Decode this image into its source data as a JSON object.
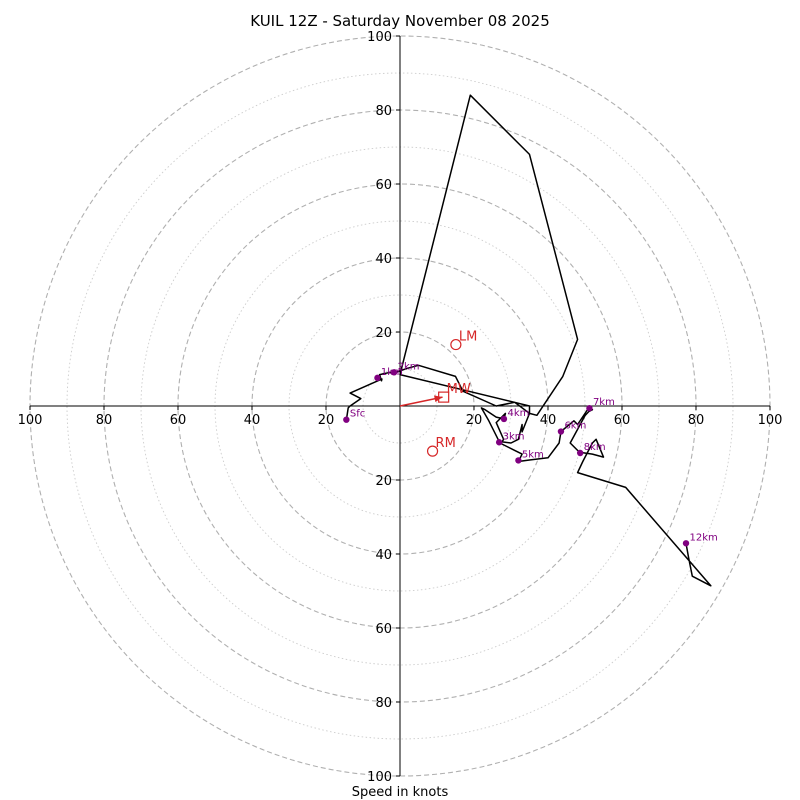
{
  "chart_data": {
    "type": "hodograph",
    "title": "KUIL 12Z - Saturday November 08 2025",
    "xlabel": "Speed in knots",
    "axis_range": [
      -100,
      100
    ],
    "ring_major": [
      10,
      20,
      30,
      40,
      50,
      60,
      70,
      80,
      90,
      100
    ],
    "x_tick_labels": [
      "100",
      "80",
      "60",
      "40",
      "20",
      "20",
      "40",
      "60",
      "80",
      "100"
    ],
    "x_tick_values": [
      -100,
      -80,
      -60,
      -40,
      -20,
      20,
      40,
      60,
      80,
      100
    ],
    "y_tick_labels": [
      "100",
      "80",
      "60",
      "40",
      "20",
      "20",
      "40",
      "60",
      "80",
      "100"
    ],
    "y_tick_values": [
      100,
      80,
      60,
      40,
      20,
      -20,
      -40,
      -60,
      -80,
      -100
    ],
    "colors": {
      "trace": "#000000",
      "height": "#800080",
      "motion": "#d62728",
      "grid": "#b0b0b0"
    },
    "trace": [
      [
        -14.5,
        -3.7
      ],
      [
        -14,
        -0.5
      ],
      [
        -13.5,
        0
      ],
      [
        -10.6,
        2
      ],
      [
        -13.5,
        3.5
      ],
      [
        -4.9,
        7.3
      ],
      [
        -5,
        6.8
      ],
      [
        -5.5,
        8.5
      ],
      [
        -3.1,
        9
      ],
      [
        -0.9,
        9.2
      ],
      [
        2,
        10.2
      ],
      [
        5,
        11
      ],
      [
        15,
        8
      ],
      [
        17,
        4
      ],
      [
        26,
        0
      ],
      [
        31,
        1
      ],
      [
        35,
        -2
      ],
      [
        37,
        -2.5
      ],
      [
        44,
        8
      ],
      [
        48,
        18
      ],
      [
        35,
        68
      ],
      [
        19,
        84
      ],
      [
        0,
        8.5
      ],
      [
        35,
        0
      ],
      [
        35,
        -2
      ],
      [
        33,
        -7
      ],
      [
        33,
        -5
      ],
      [
        32,
        -9
      ],
      [
        30,
        -10
      ],
      [
        27.6,
        -9.7
      ],
      [
        28,
        -9
      ],
      [
        26,
        -4.5
      ],
      [
        28.5,
        -2
      ],
      [
        28.1,
        -3.5
      ],
      [
        26,
        -3
      ],
      [
        23,
        -1
      ],
      [
        22,
        -0.5
      ],
      [
        24,
        -4
      ],
      [
        26,
        -8
      ],
      [
        27,
        -10
      ],
      [
        31,
        -12
      ],
      [
        33,
        -13
      ],
      [
        32,
        -15
      ],
      [
        35,
        -14.6
      ],
      [
        40,
        -14
      ],
      [
        43,
        -10
      ],
      [
        43.5,
        -6.9
      ],
      [
        47,
        -4
      ],
      [
        48,
        -5
      ],
      [
        51,
        -0.5
      ],
      [
        52,
        -1
      ],
      [
        51,
        -1.5
      ],
      [
        50,
        -2.6
      ],
      [
        46,
        -10
      ],
      [
        48,
        -12
      ],
      [
        48.5,
        -12.5
      ],
      [
        52,
        -13
      ],
      [
        55,
        -13.8
      ],
      [
        53,
        -9
      ],
      [
        52,
        -10
      ],
      [
        49.4,
        -15
      ],
      [
        48,
        -18
      ],
      [
        61,
        -22
      ],
      [
        84,
        -48.6
      ],
      [
        79,
        -46
      ],
      [
        78,
        -41
      ],
      [
        77.3,
        -37.1
      ]
    ],
    "height_markers": [
      {
        "label": "Sfc",
        "u": -14.5,
        "v": -3.7
      },
      {
        "label": "1km",
        "u": -6.1,
        "v": 7.6
      },
      {
        "label": "2km",
        "u": -1.6,
        "v": 9.1
      },
      {
        "label": "3km",
        "u": 26.8,
        "v": -9.8
      },
      {
        "label": "4km",
        "u": 28.1,
        "v": -3.5
      },
      {
        "label": "5km",
        "u": 32,
        "v": -14.7
      },
      {
        "label": "6km",
        "u": 43.5,
        "v": -6.9
      },
      {
        "label": "7km",
        "u": 51.2,
        "v": -0.6
      },
      {
        "label": "8km",
        "u": 48.7,
        "v": -12.7
      },
      {
        "label": "12km",
        "u": 77.3,
        "v": -37.1
      }
    ],
    "storm_motion": {
      "arrow_to": {
        "u": 11.5,
        "v": 2.4
      },
      "markers": [
        {
          "label": "LM",
          "u": 15.1,
          "v": 16.6,
          "shape": "circle"
        },
        {
          "label": "MW",
          "u": 11.8,
          "v": 2.4,
          "shape": "square"
        },
        {
          "label": "RM",
          "u": 8.8,
          "v": -12.2,
          "shape": "circle"
        }
      ]
    }
  }
}
